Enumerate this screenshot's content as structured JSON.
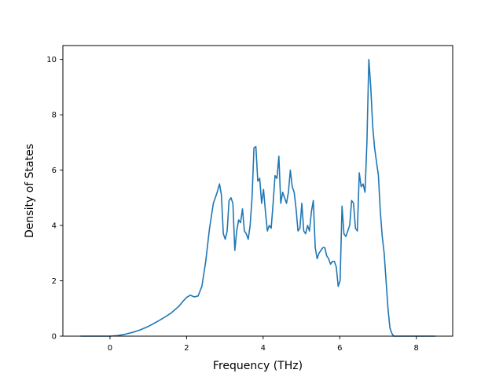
{
  "chart_data": {
    "type": "line",
    "xlabel": "Frequency (THz)",
    "ylabel": "Density of States",
    "xlim": [
      -1.23,
      8.95
    ],
    "ylim": [
      0,
      10.5
    ],
    "x_ticks": [
      0,
      2,
      4,
      6,
      8
    ],
    "y_ticks": [
      0,
      2,
      4,
      6,
      8,
      10
    ],
    "x_tick_labels": [
      "0",
      "2",
      "4",
      "6",
      "8"
    ],
    "y_tick_labels": [
      "0",
      "2",
      "4",
      "6",
      "8",
      "10"
    ],
    "grid": false,
    "line_color": "#1f77b4",
    "series": [
      {
        "x": [
          -0.77,
          -0.5,
          -0.3,
          0.0,
          0.2,
          0.4,
          0.6,
          0.8,
          1.0,
          1.2,
          1.4,
          1.6,
          1.8,
          1.9,
          2.0,
          2.1,
          2.2,
          2.3,
          2.4,
          2.5,
          2.6,
          2.7,
          2.8,
          2.86,
          2.91,
          2.96,
          3.01,
          3.06,
          3.11,
          3.16,
          3.21,
          3.26,
          3.31,
          3.36,
          3.41,
          3.46,
          3.51,
          3.56,
          3.61,
          3.66,
          3.71,
          3.76,
          3.81,
          3.86,
          3.91,
          3.96,
          4.01,
          4.06,
          4.11,
          4.16,
          4.21,
          4.26,
          4.31,
          4.36,
          4.41,
          4.46,
          4.51,
          4.56,
          4.61,
          4.66,
          4.71,
          4.76,
          4.81,
          4.86,
          4.91,
          4.96,
          5.01,
          5.06,
          5.11,
          5.16,
          5.21,
          5.26,
          5.31,
          5.36,
          5.41,
          5.46,
          5.51,
          5.56,
          5.61,
          5.66,
          5.71,
          5.76,
          5.81,
          5.86,
          5.91,
          5.96,
          6.01,
          6.06,
          6.11,
          6.16,
          6.21,
          6.26,
          6.31,
          6.36,
          6.41,
          6.46,
          6.51,
          6.56,
          6.61,
          6.66,
          6.71,
          6.76,
          6.81,
          6.86,
          6.91,
          6.96,
          7.01,
          7.06,
          7.11,
          7.16,
          7.21,
          7.26,
          7.31,
          7.36,
          7.41,
          7.46,
          7.51,
          7.56,
          7.61,
          7.66,
          7.71,
          7.8,
          8.0,
          8.2,
          8.5
        ],
        "values": [
          0.0,
          0.0,
          0.0,
          0.0,
          0.02,
          0.07,
          0.14,
          0.23,
          0.35,
          0.5,
          0.66,
          0.84,
          1.08,
          1.25,
          1.4,
          1.48,
          1.42,
          1.45,
          1.8,
          2.7,
          3.9,
          4.8,
          5.2,
          5.5,
          5.1,
          3.7,
          3.5,
          3.8,
          4.9,
          5.0,
          4.8,
          3.1,
          3.8,
          4.2,
          4.1,
          4.6,
          3.8,
          3.7,
          3.5,
          4.0,
          5.0,
          6.8,
          6.85,
          5.6,
          5.7,
          4.8,
          5.3,
          4.5,
          3.8,
          4.0,
          3.9,
          4.8,
          5.8,
          5.7,
          6.5,
          4.8,
          5.2,
          5.0,
          4.8,
          5.2,
          6.0,
          5.4,
          5.2,
          4.6,
          3.8,
          3.9,
          4.8,
          3.8,
          3.7,
          4.0,
          3.8,
          4.5,
          4.9,
          3.2,
          2.8,
          3.0,
          3.1,
          3.2,
          3.2,
          2.9,
          2.8,
          2.6,
          2.7,
          2.7,
          2.5,
          1.8,
          2.0,
          4.7,
          3.7,
          3.6,
          3.8,
          4.0,
          4.9,
          4.8,
          3.9,
          3.8,
          5.9,
          5.4,
          5.5,
          5.2,
          7.0,
          10.0,
          9.0,
          7.6,
          6.8,
          6.3,
          5.8,
          4.5,
          3.6,
          3.0,
          2.0,
          1.0,
          0.3,
          0.1,
          0.0,
          0.0,
          0.0,
          0.0,
          0.0,
          0.0,
          0.0,
          0.0,
          0.0,
          0.0,
          0.0
        ]
      }
    ]
  }
}
